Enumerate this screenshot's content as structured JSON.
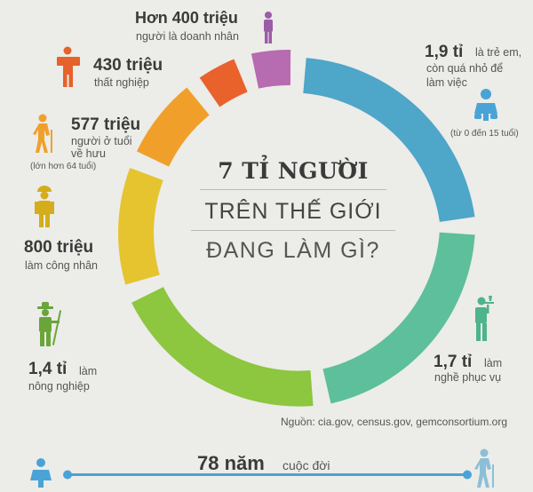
{
  "title": {
    "line1": "7 tỉ người",
    "line2": "Trên thế giới",
    "line3": "Đang làm gì?"
  },
  "colors": {
    "children": "#4ea6c9",
    "services": "#5dbf9b",
    "agriculture": "#8dc63f",
    "workers": "#e5c42f",
    "retired": "#f0a02a",
    "unemployed": "#e9622c",
    "business": "#b76bb0",
    "background": "#ecece9",
    "timeline": "#4aa3d6"
  },
  "segments": [
    {
      "key": "children",
      "label_big": "1,9 tỉ",
      "label_small": "là trẻ em, còn quá nhỏ để làm việc",
      "note": "(từ 0 đến 15 tuổi)",
      "icon": "baby-icon"
    },
    {
      "key": "services",
      "label_big": "1,7 tỉ",
      "label_small": "làm nghề phục vụ",
      "icon": "waiter-icon"
    },
    {
      "key": "agriculture",
      "label_big": "1,4 tỉ",
      "label_small": "làm nông nghiệp",
      "icon": "farmer-icon"
    },
    {
      "key": "workers",
      "label_big": "800 triệu",
      "label_small": "làm công nhân",
      "icon": "worker-icon"
    },
    {
      "key": "retired",
      "label_big": "577 triệu",
      "label_small": "người ở tuổi về hưu",
      "note": "(lớn hơn 64 tuổi)",
      "icon": "elder-icon"
    },
    {
      "key": "unemployed",
      "label_big": "430 triệu",
      "label_small": "thất nghiệp",
      "icon": "unemployed-icon"
    },
    {
      "key": "business",
      "label_big": "Hơn 400 triệu",
      "label_small": "người là doanh nhân",
      "icon": "businessman-icon"
    }
  ],
  "labels": {
    "children_big": "1,9 tỉ",
    "children_line1": "là trẻ em,",
    "children_line2": "còn quá nhỏ để",
    "children_line3": "làm việc",
    "children_note": "(từ 0 đến 15 tuổi)",
    "services_big": "1,7 tỉ",
    "services_line1": "làm",
    "services_line2": "nghề phục vụ",
    "agri_big": "1,4 tỉ",
    "agri_line1": "làm",
    "agri_line2": "nông nghiệp",
    "workers_big": "800 triệu",
    "workers_line1": "làm công nhân",
    "retired_big": "577 triệu",
    "retired_line1": "người ở tuổi",
    "retired_line2": "về hưu",
    "retired_note": "(lớn hơn 64 tuổi)",
    "unemp_big": "430 triệu",
    "unemp_line1": "thất nghiệp",
    "biz_big": "Hơn 400 triệu",
    "biz_line1": "người là doanh nhân"
  },
  "source": "Nguồn:  cia.gov, census.gov, gemconsortium.org",
  "timeline": {
    "years_big": "78 năm",
    "years_small": "cuộc đời"
  }
}
